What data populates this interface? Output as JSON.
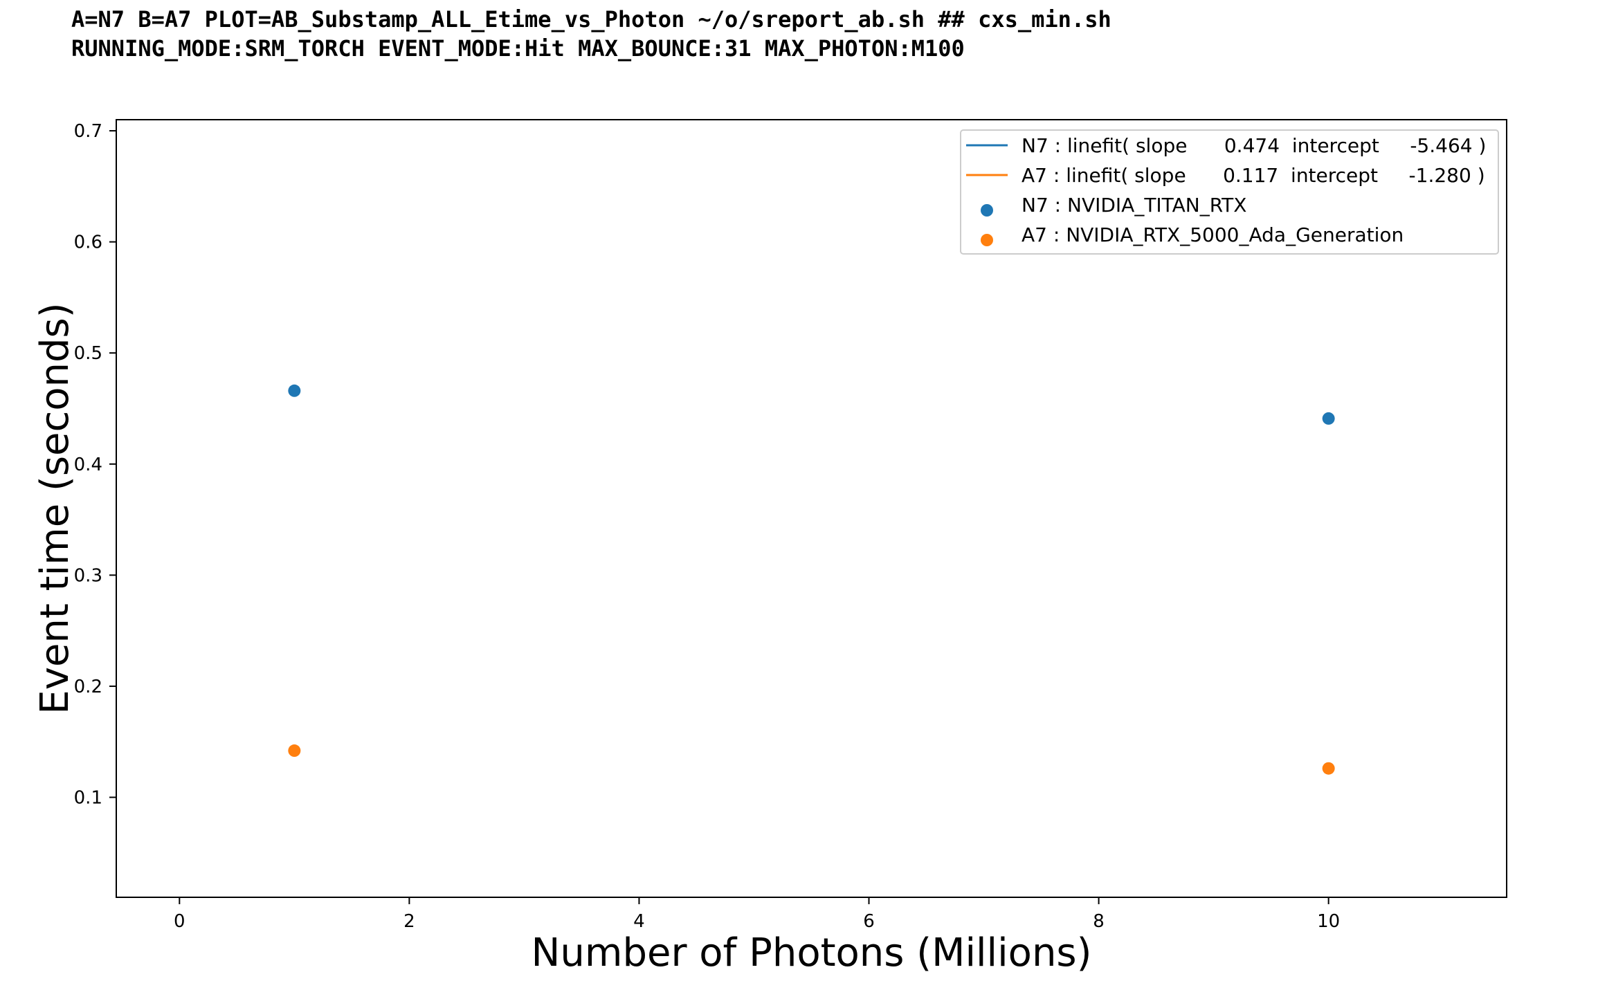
{
  "header": {
    "line1": "A=N7 B=A7 PLOT=AB_Substamp_ALL_Etime_vs_Photon ~/o/sreport_ab.sh ## cxs_min.sh",
    "line2": "RUNNING_MODE:SRM_TORCH EVENT_MODE:Hit MAX_BOUNCE:31 MAX_PHOTON:M100"
  },
  "chart_data": {
    "type": "scatter",
    "xlabel": "Number of Photons (Millions)",
    "ylabel": "Event time (seconds)",
    "xlim": [
      -0.55,
      11.55
    ],
    "ylim": [
      0.01,
      0.71
    ],
    "xticks": [
      0,
      2,
      4,
      6,
      8,
      10
    ],
    "yticks": [
      0.1,
      0.2,
      0.3,
      0.4,
      0.5,
      0.6,
      0.7
    ],
    "xtick_labels": [
      "0",
      "2",
      "4",
      "6",
      "8",
      "10"
    ],
    "ytick_labels": [
      "0.1",
      "0.2",
      "0.3",
      "0.4",
      "0.5",
      "0.6",
      "0.7"
    ],
    "grid": false,
    "legend_position": "top-right",
    "fit_lines": [
      {
        "label": "N7 : linefit( slope      0.474  intercept     -5.464 )",
        "slope": 0.474,
        "intercept": -5.464,
        "color": "#1f77b4"
      },
      {
        "label": "A7 : linefit( slope      0.117  intercept     -1.280 )",
        "slope": 0.117,
        "intercept": -1.28,
        "color": "#ff7f0e"
      }
    ],
    "series": [
      {
        "name": "N7 : NVIDIA_TITAN_RTX",
        "color": "#1f77b4",
        "x": [
          1,
          10
        ],
        "y": [
          0.466,
          0.441
        ]
      },
      {
        "name": "A7 : NVIDIA_RTX_5000_Ada_Generation",
        "color": "#ff7f0e",
        "x": [
          1,
          10
        ],
        "y": [
          0.142,
          0.126
        ]
      }
    ]
  }
}
